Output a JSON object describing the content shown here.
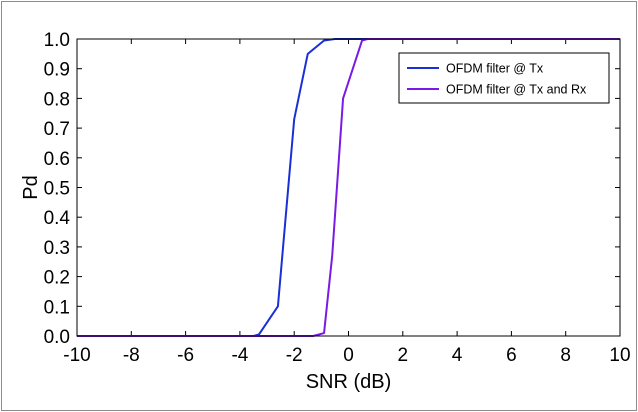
{
  "chart_data": {
    "type": "line",
    "title": "",
    "xlabel": "SNR (dB)",
    "ylabel": "Pd",
    "xlim": [
      -10,
      10
    ],
    "ylim": [
      0,
      1
    ],
    "xticks": [
      "-10",
      "-8",
      "-6",
      "-4",
      "-2",
      "0",
      "2",
      "4",
      "6",
      "8",
      "10"
    ],
    "yticks": [
      "0.0",
      "0.1",
      "0.2",
      "0.3",
      "0.4",
      "0.5",
      "0.6",
      "0.7",
      "0.8",
      "0.9",
      "1.0"
    ],
    "grid": false,
    "legend_position": "top-right",
    "series": [
      {
        "name": "OFDM filter @ Tx",
        "color": "#1a2fd6",
        "points": [
          [
            -10,
            0.0
          ],
          [
            -3.5,
            0.0
          ],
          [
            -3.3,
            0.005
          ],
          [
            -2.6,
            0.1
          ],
          [
            -2.0,
            0.73
          ],
          [
            -1.5,
            0.95
          ],
          [
            -0.9,
            0.995
          ],
          [
            -0.5,
            1.0
          ],
          [
            10,
            1.0
          ]
        ]
      },
      {
        "name": "OFDM filter @ Tx and Rx",
        "color": "#7a1ae6",
        "points": [
          [
            -10,
            0.0
          ],
          [
            -1.3,
            0.0
          ],
          [
            -0.9,
            0.01
          ],
          [
            -0.6,
            0.27
          ],
          [
            -0.2,
            0.8
          ],
          [
            0.5,
            0.995
          ],
          [
            0.7,
            1.0
          ],
          [
            10,
            1.0
          ]
        ]
      }
    ]
  }
}
